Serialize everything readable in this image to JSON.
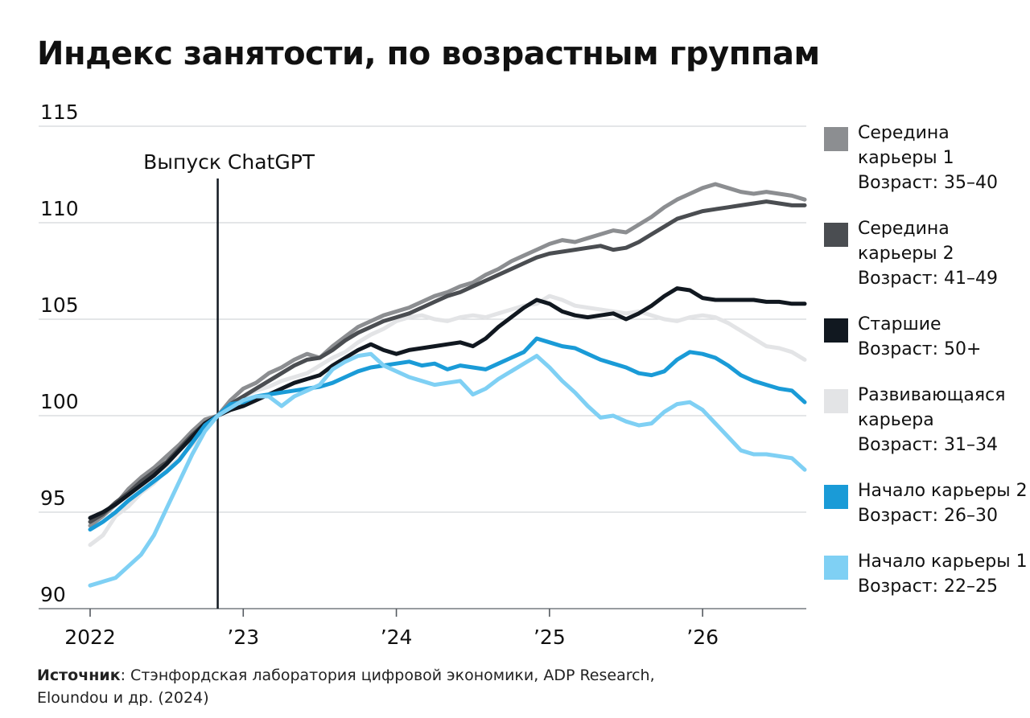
{
  "title": "Индекс занятости, по возрастным группам",
  "source": {
    "label": "Источник",
    "text": ": Стэнфордская лаборатория цифровой экономики, ADP Research,",
    "text2": "Eloundou и др. (2024)"
  },
  "legend": [
    {
      "line1": "Середина",
      "line2": "карьеры 1",
      "line3": "Возраст: 35–40",
      "color": "#8c8e91"
    },
    {
      "line1": "Середина",
      "line2": "карьеры 2",
      "line3": "Возраст: 41–49",
      "color": "#4a4d51"
    },
    {
      "line1": "Старшие",
      "line2": "Возраст: 50+",
      "line3": "",
      "color": "#111820"
    },
    {
      "line1": "Развивающаяся",
      "line2": "карьера",
      "line3": "Возраст: 31–34",
      "color": "#e3e4e6"
    },
    {
      "line1": "Начало карьеры 2",
      "line2": "Возраст: 26–30",
      "line3": "",
      "color": "#1a9bd7"
    },
    {
      "line1": "Начало карьеры 1",
      "line2": "Возраст: 22–25",
      "line3": "",
      "color": "#7fd0f4"
    }
  ],
  "chart_data": {
    "type": "line",
    "title": "Индекс занятости, по возрастным группам",
    "xlabel": "",
    "ylabel": "",
    "ylim": [
      90,
      115
    ],
    "xlim": [
      "2022-01",
      "2026-09"
    ],
    "y_ticks": [
      "90",
      "95",
      "100",
      "105",
      "110",
      "115"
    ],
    "x_ticks": [
      {
        "value": "2022-01",
        "label": "2022"
      },
      {
        "value": "2023-01",
        "label": "’23"
      },
      {
        "value": "2024-01",
        "label": "’24"
      },
      {
        "value": "2025-01",
        "label": "’25"
      },
      {
        "value": "2026-01",
        "label": "’26"
      }
    ],
    "grid": true,
    "legend_position": "right",
    "annotations": [
      {
        "x": "2022-11",
        "label": "Выпуск ChatGPT"
      }
    ],
    "x": [
      "2022-01",
      "2022-02",
      "2022-03",
      "2022-04",
      "2022-05",
      "2022-06",
      "2022-07",
      "2022-08",
      "2022-09",
      "2022-10",
      "2022-11",
      "2022-12",
      "2023-01",
      "2023-02",
      "2023-03",
      "2023-04",
      "2023-05",
      "2023-06",
      "2023-07",
      "2023-08",
      "2023-09",
      "2023-10",
      "2023-11",
      "2023-12",
      "2024-01",
      "2024-02",
      "2024-03",
      "2024-04",
      "2024-05",
      "2024-06",
      "2024-07",
      "2024-08",
      "2024-09",
      "2024-10",
      "2024-11",
      "2024-12",
      "2025-01",
      "2025-02",
      "2025-03",
      "2025-04",
      "2025-05",
      "2025-06",
      "2025-07",
      "2025-08",
      "2025-09",
      "2025-10",
      "2025-11",
      "2025-12",
      "2026-01",
      "2026-02",
      "2026-03",
      "2026-04",
      "2026-05",
      "2026-06",
      "2026-07",
      "2026-08",
      "2026-09"
    ],
    "series": [
      {
        "name": "Развивающаяся карьера Возраст: 31–34",
        "color": "#e3e4e6",
        "values": [
          93.3,
          93.8,
          94.8,
          95.3,
          96.0,
          96.5,
          97.2,
          97.8,
          98.5,
          99.3,
          100.0,
          100.6,
          101.0,
          101.3,
          101.5,
          101.8,
          102.0,
          102.2,
          102.6,
          103.0,
          103.3,
          103.8,
          104.2,
          104.5,
          104.9,
          105.1,
          105.2,
          105.0,
          104.9,
          105.1,
          105.2,
          105.1,
          105.3,
          105.5,
          105.7,
          105.8,
          106.2,
          106.0,
          105.7,
          105.6,
          105.5,
          105.4,
          105.3,
          105.4,
          105.2,
          105.0,
          104.9,
          105.1,
          105.2,
          105.1,
          104.8,
          104.4,
          104.0,
          103.6,
          103.5,
          103.3,
          102.9
        ]
      },
      {
        "name": "Середина карьеры 1 Возраст: 35–40",
        "color": "#8c8e91",
        "values": [
          94.3,
          94.8,
          95.4,
          96.2,
          96.8,
          97.3,
          97.9,
          98.5,
          99.2,
          99.8,
          100.0,
          100.8,
          101.4,
          101.7,
          102.2,
          102.5,
          102.9,
          103.2,
          103.0,
          103.6,
          104.1,
          104.6,
          104.9,
          105.2,
          105.4,
          105.6,
          105.9,
          106.2,
          106.4,
          106.7,
          106.9,
          107.3,
          107.6,
          108.0,
          108.3,
          108.6,
          108.9,
          109.1,
          109.0,
          109.2,
          109.4,
          109.6,
          109.5,
          109.9,
          110.3,
          110.8,
          111.2,
          111.5,
          111.8,
          112.0,
          111.8,
          111.6,
          111.5,
          111.6,
          111.5,
          111.4,
          111.2
        ]
      },
      {
        "name": "Середина карьеры 2 Возраст: 41–49",
        "color": "#4a4d51",
        "values": [
          94.5,
          94.9,
          95.5,
          96.0,
          96.6,
          97.1,
          97.6,
          98.3,
          99.0,
          99.6,
          100.0,
          100.6,
          101.0,
          101.4,
          101.8,
          102.2,
          102.6,
          102.9,
          103.0,
          103.4,
          103.9,
          104.3,
          104.6,
          104.9,
          105.1,
          105.3,
          105.6,
          105.9,
          106.2,
          106.4,
          106.7,
          107.0,
          107.3,
          107.6,
          107.9,
          108.2,
          108.4,
          108.5,
          108.6,
          108.7,
          108.8,
          108.6,
          108.7,
          109.0,
          109.4,
          109.8,
          110.2,
          110.4,
          110.6,
          110.7,
          110.8,
          110.9,
          111.0,
          111.1,
          111.0,
          110.9,
          110.9
        ]
      },
      {
        "name": "Старшие Возраст: 50+",
        "color": "#111820",
        "values": [
          94.7,
          95.0,
          95.4,
          95.9,
          96.4,
          96.9,
          97.5,
          98.2,
          98.9,
          99.6,
          100.0,
          100.3,
          100.5,
          100.8,
          101.1,
          101.4,
          101.7,
          101.9,
          102.1,
          102.6,
          103.0,
          103.4,
          103.7,
          103.4,
          103.2,
          103.4,
          103.5,
          103.6,
          103.7,
          103.8,
          103.6,
          104.0,
          104.6,
          105.1,
          105.6,
          106.0,
          105.8,
          105.4,
          105.2,
          105.1,
          105.2,
          105.3,
          105.0,
          105.3,
          105.7,
          106.2,
          106.6,
          106.5,
          106.1,
          106.0,
          106.0,
          106.0,
          106.0,
          105.9,
          105.9,
          105.8,
          105.8
        ]
      },
      {
        "name": "Начало карьеры 2 Возраст: 26–30",
        "color": "#1a9bd7",
        "values": [
          94.1,
          94.5,
          95.0,
          95.6,
          96.1,
          96.6,
          97.1,
          97.7,
          98.6,
          99.5,
          100.0,
          100.6,
          100.7,
          101.0,
          101.1,
          101.2,
          101.3,
          101.4,
          101.5,
          101.7,
          102.0,
          102.3,
          102.5,
          102.6,
          102.7,
          102.8,
          102.6,
          102.7,
          102.4,
          102.6,
          102.5,
          102.4,
          102.7,
          103.0,
          103.3,
          104.0,
          103.8,
          103.6,
          103.5,
          103.2,
          102.9,
          102.7,
          102.5,
          102.2,
          102.1,
          102.3,
          102.9,
          103.3,
          103.2,
          103.0,
          102.6,
          102.1,
          101.8,
          101.6,
          101.4,
          101.3,
          100.7
        ]
      },
      {
        "name": "Начало карьеры 1 Возраст: 22–25",
        "color": "#7fd0f4",
        "values": [
          91.2,
          91.4,
          91.6,
          92.2,
          92.8,
          93.8,
          95.2,
          96.6,
          98.0,
          99.2,
          100.0,
          100.4,
          100.8,
          101.0,
          101.0,
          100.5,
          101.0,
          101.3,
          101.6,
          102.4,
          102.8,
          103.1,
          103.2,
          102.6,
          102.3,
          102.0,
          101.8,
          101.6,
          101.7,
          101.8,
          101.1,
          101.4,
          101.9,
          102.3,
          102.7,
          103.1,
          102.5,
          101.8,
          101.2,
          100.5,
          99.9,
          100.0,
          99.7,
          99.5,
          99.6,
          100.2,
          100.6,
          100.7,
          100.3,
          99.6,
          98.9,
          98.2,
          98.0,
          98.0,
          97.9,
          97.8,
          97.2
        ]
      }
    ]
  }
}
